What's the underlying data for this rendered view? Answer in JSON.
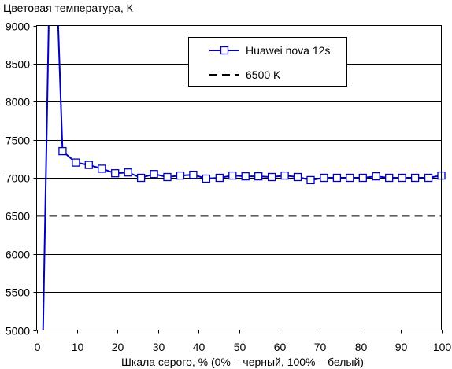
{
  "chart_data": {
    "type": "line",
    "title": "Цветовая температура, К",
    "xlabel": "Шкала серого, % (0% – черный, 100% – белый)",
    "ylabel": "",
    "xlim": [
      0,
      100
    ],
    "ylim": [
      5000,
      9000
    ],
    "xticks": [
      0,
      10,
      20,
      30,
      40,
      50,
      60,
      70,
      80,
      90,
      100
    ],
    "yticks": [
      5000,
      5500,
      6000,
      6500,
      7000,
      7500,
      8000,
      8500,
      9000
    ],
    "grid": true,
    "legend_position": "top-right",
    "series": [
      {
        "name": "Huawei nova 12s",
        "color": "#0000c0",
        "marker": "square",
        "x": [
          1.6,
          3.2,
          4.8,
          6.4,
          9.7,
          12.9,
          16.1,
          19.4,
          22.6,
          25.8,
          29.0,
          32.3,
          35.5,
          38.7,
          41.9,
          45.2,
          48.4,
          51.6,
          54.8,
          58.1,
          61.3,
          64.5,
          67.7,
          71.0,
          74.2,
          77.4,
          80.6,
          83.9,
          87.1,
          90.3,
          93.5,
          96.8,
          100.0
        ],
        "values": [
          5000,
          9600,
          9800,
          7350,
          7200,
          7170,
          7120,
          7060,
          7070,
          7000,
          7050,
          7010,
          7030,
          7040,
          6990,
          7000,
          7030,
          7020,
          7020,
          7010,
          7030,
          7010,
          6970,
          7000,
          7000,
          7000,
          7000,
          7020,
          7000,
          7000,
          7000,
          7000,
          7030
        ],
        "markers_from_index": 3
      },
      {
        "name": "6500 K",
        "color": "#000000",
        "style": "dashed",
        "x": [
          0,
          100
        ],
        "values": [
          6500,
          6500
        ]
      }
    ]
  }
}
